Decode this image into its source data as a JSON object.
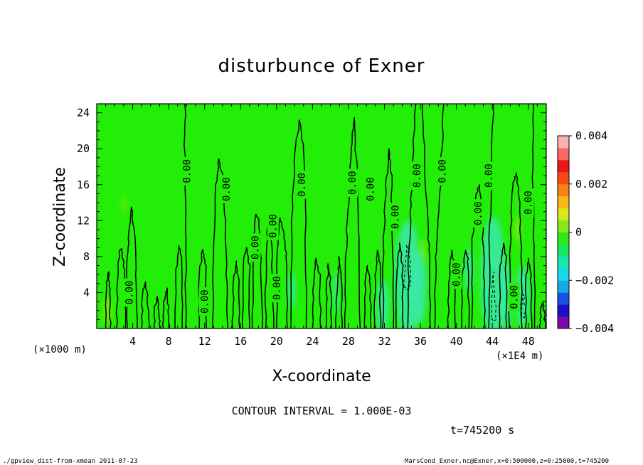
{
  "chart_data": {
    "type": "heatmap",
    "title": "disturbunce of Exner",
    "xlabel": "X-coordinate",
    "ylabel": "Z-coordinate",
    "x_unit_left": "(×1000 m)",
    "x_unit_right": "(×1E4 m)",
    "xlim": [
      0,
      50
    ],
    "ylim": [
      0,
      25
    ],
    "x_ticks": [
      4,
      8,
      12,
      16,
      20,
      24,
      28,
      32,
      36,
      40,
      44,
      48
    ],
    "x_ticks_labels": [
      "4",
      "8",
      "12",
      "16",
      "20",
      "24",
      "28",
      "32",
      "36",
      "40",
      "44",
      "48"
    ],
    "y_ticks": [
      4,
      8,
      12,
      16,
      20,
      24
    ],
    "y_ticks_labels": [
      "4",
      "8",
      "12",
      "16",
      "20",
      "24"
    ],
    "colorbar": {
      "range": [
        -0.004,
        0.004
      ],
      "tick_labels": [
        "0.004",
        "0.002",
        "0",
        "−0.002",
        "−0.004"
      ],
      "tick_values": [
        0.004,
        0.002,
        0,
        -0.002,
        -0.004
      ],
      "colors": [
        "#7a0aa8",
        "#1a10c8",
        "#1850e8",
        "#18a8e8",
        "#18d8e8",
        "#18e8b0",
        "#18e860",
        "#30e818",
        "#88e818",
        "#d8e818",
        "#f8b818",
        "#f88018",
        "#f84818",
        "#e81818",
        "#f86868",
        "#f8b0b0"
      ]
    },
    "background_color": "#22ee08",
    "contour_interval_text": "CONTOUR INTERVAL = 1.000E-03",
    "contour_label": "0.00",
    "contour_labels": [
      {
        "x": 3.6,
        "z": 4.0,
        "text": "0.00"
      },
      {
        "x": 10.0,
        "z": 17.5,
        "text": "0.00"
      },
      {
        "x": 12.0,
        "z": 3.0,
        "text": "0.00"
      },
      {
        "x": 14.4,
        "z": 15.5,
        "text": "0.00"
      },
      {
        "x": 17.6,
        "z": 9.0,
        "text": "0.00"
      },
      {
        "x": 19.6,
        "z": 11.4,
        "text": "0.00"
      },
      {
        "x": 20.0,
        "z": 4.5,
        "text": "0.00"
      },
      {
        "x": 22.8,
        "z": 16.0,
        "text": "0.00"
      },
      {
        "x": 28.4,
        "z": 16.2,
        "text": "0.00"
      },
      {
        "x": 30.4,
        "z": 15.5,
        "text": "0.00"
      },
      {
        "x": 33.2,
        "z": 12.4,
        "text": "0.00"
      },
      {
        "x": 35.6,
        "z": 17.0,
        "text": "0.00"
      },
      {
        "x": 38.4,
        "z": 17.5,
        "text": "0.00"
      },
      {
        "x": 40.0,
        "z": 6.0,
        "text": "0.00"
      },
      {
        "x": 42.4,
        "z": 12.8,
        "text": "0.00"
      },
      {
        "x": 43.6,
        "z": 17.0,
        "text": "0.00"
      },
      {
        "x": 46.4,
        "z": 3.5,
        "text": "0.00"
      },
      {
        "x": 48.0,
        "z": 14.0,
        "text": "0.00"
      }
    ],
    "contours": [
      {
        "style": "solid",
        "points": [
          [
            1.0,
            0
          ],
          [
            1.1,
            5
          ],
          [
            1.3,
            6.3
          ],
          [
            1.5,
            4
          ],
          [
            1.5,
            0
          ]
        ]
      },
      {
        "style": "solid",
        "points": [
          [
            2.2,
            0
          ],
          [
            2.3,
            5
          ],
          [
            2.5,
            8.6
          ],
          [
            2.8,
            8.9
          ],
          [
            3.1,
            6
          ],
          [
            3.2,
            0
          ]
        ]
      },
      {
        "style": "solid",
        "points": [
          [
            3.4,
            0
          ],
          [
            3.4,
            8
          ],
          [
            3.6,
            11
          ],
          [
            3.9,
            13.5
          ],
          [
            4.2,
            10
          ],
          [
            4.4,
            6
          ],
          [
            4.5,
            0
          ]
        ]
      },
      {
        "style": "solid",
        "points": [
          [
            5.0,
            0
          ],
          [
            5.1,
            4
          ],
          [
            5.4,
            5.2
          ],
          [
            5.7,
            3
          ],
          [
            5.8,
            0
          ]
        ]
      },
      {
        "style": "solid",
        "points": [
          [
            6.4,
            0
          ],
          [
            6.5,
            2.5
          ],
          [
            6.8,
            3.6
          ],
          [
            7.0,
            1
          ],
          [
            7.1,
            0
          ]
        ]
      },
      {
        "style": "solid",
        "points": [
          [
            7.4,
            0
          ],
          [
            7.5,
            3
          ],
          [
            7.8,
            4.5
          ],
          [
            8.0,
            2
          ],
          [
            8.1,
            0
          ]
        ]
      },
      {
        "style": "solid",
        "points": [
          [
            8.7,
            0
          ],
          [
            8.8,
            6
          ],
          [
            9.1,
            9.2
          ],
          [
            9.4,
            8
          ],
          [
            9.5,
            0
          ]
        ]
      },
      {
        "style": "solid",
        "points": [
          [
            9.9,
            0
          ],
          [
            9.9,
            10
          ],
          [
            9.8,
            18
          ],
          [
            9.8,
            25
          ]
        ]
      },
      {
        "style": "solid",
        "points": [
          [
            11.4,
            0
          ],
          [
            11.4,
            6
          ],
          [
            11.8,
            8.8
          ],
          [
            12.1,
            7
          ],
          [
            12.2,
            0
          ]
        ]
      },
      {
        "style": "solid",
        "points": [
          [
            12.9,
            0
          ],
          [
            13.0,
            8
          ],
          [
            13.3,
            16
          ],
          [
            13.6,
            18.9
          ],
          [
            14.0,
            17
          ],
          [
            14.3,
            12
          ],
          [
            14.4,
            6
          ],
          [
            14.6,
            0
          ]
        ]
      },
      {
        "style": "solid",
        "points": [
          [
            15.1,
            0
          ],
          [
            15.2,
            5
          ],
          [
            15.5,
            7.5
          ],
          [
            15.8,
            5
          ],
          [
            15.9,
            0
          ]
        ]
      },
      {
        "style": "solid",
        "points": [
          [
            16.2,
            0
          ],
          [
            16.3,
            7
          ],
          [
            16.6,
            9
          ],
          [
            17.0,
            7
          ],
          [
            17.0,
            0
          ]
        ]
      },
      {
        "style": "solid",
        "points": [
          [
            17.3,
            0
          ],
          [
            17.4,
            9
          ],
          [
            17.7,
            12.7
          ],
          [
            18.1,
            12
          ],
          [
            18.3,
            7
          ],
          [
            18.4,
            0
          ]
        ]
      },
      {
        "style": "solid",
        "points": [
          [
            18.8,
            0
          ],
          [
            18.8,
            8
          ],
          [
            19.1,
            12
          ],
          [
            19.4,
            11
          ],
          [
            19.6,
            5
          ],
          [
            19.7,
            0
          ]
        ]
      },
      {
        "style": "solid",
        "points": [
          [
            20.0,
            0
          ],
          [
            20.1,
            8
          ],
          [
            20.4,
            12.3
          ],
          [
            20.8,
            10.5
          ],
          [
            21.1,
            8
          ],
          [
            21.2,
            0
          ]
        ]
      },
      {
        "style": "solid",
        "points": [
          [
            21.6,
            0
          ],
          [
            21.7,
            12
          ],
          [
            22.1,
            20
          ],
          [
            22.6,
            23.2
          ],
          [
            23.0,
            20
          ],
          [
            23.2,
            12
          ],
          [
            23.3,
            0
          ]
        ]
      },
      {
        "style": "solid",
        "points": [
          [
            24.0,
            0
          ],
          [
            24.1,
            5
          ],
          [
            24.4,
            7.8
          ],
          [
            24.8,
            6
          ],
          [
            24.9,
            0
          ]
        ]
      },
      {
        "style": "solid",
        "points": [
          [
            25.5,
            0
          ],
          [
            25.6,
            5
          ],
          [
            25.8,
            7.2
          ],
          [
            26.1,
            4
          ],
          [
            26.1,
            0
          ]
        ]
      },
      {
        "style": "solid",
        "points": [
          [
            26.6,
            0
          ],
          [
            26.8,
            6
          ],
          [
            27.0,
            8
          ],
          [
            27.2,
            5
          ],
          [
            27.3,
            0
          ]
        ]
      },
      {
        "style": "solid",
        "points": [
          [
            27.6,
            0
          ],
          [
            27.7,
            8
          ],
          [
            28.0,
            14
          ],
          [
            28.3,
            20
          ],
          [
            28.6,
            23.5
          ],
          [
            28.9,
            18
          ],
          [
            29.2,
            10
          ],
          [
            29.3,
            0
          ]
        ]
      },
      {
        "style": "solid",
        "points": [
          [
            29.8,
            0
          ],
          [
            29.9,
            5
          ],
          [
            30.1,
            7
          ],
          [
            30.4,
            5
          ],
          [
            30.5,
            0
          ]
        ]
      },
      {
        "style": "solid",
        "points": [
          [
            30.9,
            0
          ],
          [
            31.0,
            6
          ],
          [
            31.2,
            8.7
          ],
          [
            31.5,
            7
          ],
          [
            31.6,
            0
          ]
        ]
      },
      {
        "style": "solid",
        "points": [
          [
            31.8,
            0
          ],
          [
            31.9,
            10
          ],
          [
            32.2,
            16
          ],
          [
            32.5,
            20
          ],
          [
            32.8,
            17
          ],
          [
            32.9,
            10
          ],
          [
            33.0,
            0
          ]
        ]
      },
      {
        "style": "solid",
        "points": [
          [
            33.3,
            0
          ],
          [
            33.4,
            6
          ],
          [
            33.7,
            9.5
          ],
          [
            34.0,
            7
          ],
          [
            34.1,
            0
          ]
        ]
      },
      {
        "style": "solid",
        "points": [
          [
            34.6,
            0
          ],
          [
            34.7,
            8
          ],
          [
            34.9,
            12
          ],
          [
            35.0,
            17
          ],
          [
            35.5,
            25
          ]
        ]
      },
      {
        "style": "solid",
        "points": [
          [
            36.2,
            25
          ],
          [
            36.5,
            18
          ],
          [
            36.8,
            12
          ],
          [
            37.0,
            8
          ],
          [
            37.1,
            0
          ]
        ]
      },
      {
        "style": "solid",
        "points": [
          [
            37.6,
            0
          ],
          [
            37.7,
            8
          ],
          [
            38.0,
            12
          ],
          [
            38.3,
            18
          ],
          [
            38.6,
            25
          ]
        ]
      },
      {
        "style": "solid",
        "points": [
          [
            39.1,
            0
          ],
          [
            39.2,
            6
          ],
          [
            39.5,
            8.7
          ],
          [
            39.8,
            7
          ],
          [
            39.9,
            0
          ]
        ]
      },
      {
        "style": "solid",
        "points": [
          [
            40.6,
            0
          ],
          [
            40.7,
            6
          ],
          [
            41.0,
            8.7
          ],
          [
            41.3,
            7.5
          ],
          [
            41.4,
            0
          ]
        ]
      },
      {
        "style": "solid",
        "points": [
          [
            41.7,
            0
          ],
          [
            41.8,
            10
          ],
          [
            42.2,
            15
          ],
          [
            42.6,
            16
          ],
          [
            42.9,
            12
          ],
          [
            43.1,
            6
          ],
          [
            43.2,
            0
          ]
        ]
      },
      {
        "style": "solid",
        "points": [
          [
            43.6,
            0
          ],
          [
            43.7,
            10
          ],
          [
            43.9,
            18
          ],
          [
            44.1,
            25
          ]
        ]
      },
      {
        "style": "solid",
        "points": [
          [
            44.8,
            0
          ],
          [
            44.9,
            7
          ],
          [
            45.2,
            9.5
          ],
          [
            45.5,
            8
          ],
          [
            45.6,
            0
          ]
        ]
      },
      {
        "style": "solid",
        "points": [
          [
            45.9,
            0
          ],
          [
            46.0,
            10
          ],
          [
            46.3,
            16
          ],
          [
            46.7,
            17.3
          ],
          [
            47.0,
            14
          ],
          [
            47.2,
            8
          ],
          [
            47.3,
            0
          ]
        ]
      },
      {
        "style": "solid",
        "points": [
          [
            47.7,
            0
          ],
          [
            47.8,
            6
          ],
          [
            48.0,
            7.8
          ],
          [
            48.3,
            5.5
          ],
          [
            48.4,
            0
          ]
        ]
      },
      {
        "style": "solid",
        "points": [
          [
            48.7,
            0
          ],
          [
            48.7,
            8
          ],
          [
            48.5,
            15
          ],
          [
            48.6,
            25
          ]
        ]
      },
      {
        "style": "solid",
        "points": [
          [
            49.3,
            0
          ],
          [
            49.4,
            2
          ],
          [
            49.6,
            3
          ],
          [
            49.8,
            1.5
          ],
          [
            49.9,
            0
          ]
        ]
      },
      {
        "style": "dashed",
        "points": [
          [
            34.2,
            4.6
          ],
          [
            34.3,
            7
          ],
          [
            34.5,
            9.3
          ],
          [
            34.8,
            8
          ],
          [
            34.9,
            5
          ],
          [
            34.6,
            4.3
          ],
          [
            34.2,
            4.6
          ]
        ]
      },
      {
        "style": "dashed",
        "points": [
          [
            43.9,
            1.2
          ],
          [
            44.0,
            4
          ],
          [
            44.1,
            6.3
          ],
          [
            44.3,
            4
          ],
          [
            44.4,
            1
          ],
          [
            44.1,
            0.8
          ],
          [
            43.9,
            1.2
          ]
        ]
      },
      {
        "style": "dashed",
        "points": [
          [
            47.2,
            1.5
          ],
          [
            47.3,
            3
          ],
          [
            47.5,
            3.8
          ],
          [
            47.7,
            2
          ],
          [
            47.5,
            1.2
          ],
          [
            47.2,
            1.5
          ]
        ]
      }
    ],
    "negative_patches": [
      {
        "x": 31.8,
        "z": 2.5,
        "rx": 0.7,
        "rz": 3.0
      },
      {
        "x": 34.6,
        "z": 5.5,
        "rx": 1.5,
        "rz": 6.5
      },
      {
        "x": 35.9,
        "z": 4.5,
        "rx": 0.8,
        "rz": 4.0
      },
      {
        "x": 41.4,
        "z": 6.5,
        "rx": 0.5,
        "rz": 2.5
      },
      {
        "x": 44.1,
        "z": 5.5,
        "rx": 1.4,
        "rz": 7.0
      },
      {
        "x": 45.6,
        "z": 3.5,
        "rx": 0.5,
        "rz": 4.0
      },
      {
        "x": 47.4,
        "z": 3.5,
        "rx": 0.8,
        "rz": 3.5
      },
      {
        "x": 21.7,
        "z": 4.2,
        "rx": 0.4,
        "rz": 2.0
      },
      {
        "x": 26.6,
        "z": 4.0,
        "rx": 0.3,
        "rz": 2.5
      }
    ],
    "positive_patches": [
      {
        "x": 1.2,
        "z": 2.0,
        "rx": 0.4,
        "rz": 1.6
      },
      {
        "x": 3.0,
        "z": 13.8,
        "rx": 0.2,
        "rz": 1.0
      },
      {
        "x": 36.2,
        "z": 8.5,
        "rx": 0.3,
        "rz": 1.5
      },
      {
        "x": 46.8,
        "z": 11.0,
        "rx": 0.3,
        "rz": 1.5
      }
    ]
  },
  "annotations": {
    "time": "t=745200 s",
    "footer_left": "./gpview_dist-from-xmean  2011-07-23",
    "footer_right": "MarsCond_Exner.nc@Exner,x=0:500000,z=0:25000,t=745200"
  }
}
